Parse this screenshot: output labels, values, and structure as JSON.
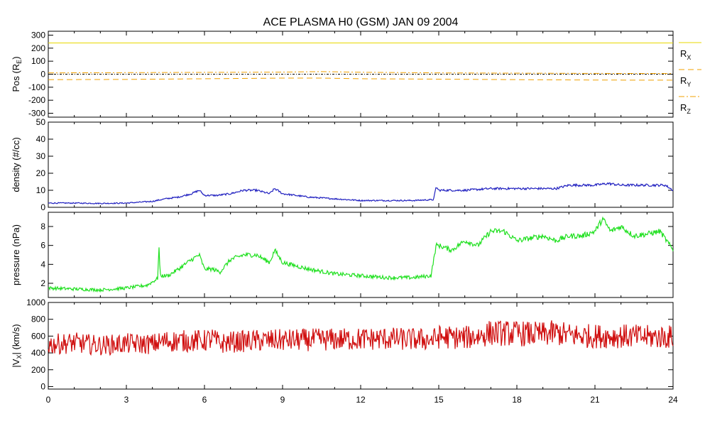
{
  "chart_data": {
    "type": "line",
    "title": "ACE PLASMA H0 (GSM)   JAN 09 2004",
    "x_ticks": [
      0,
      3,
      6,
      9,
      12,
      15,
      18,
      21,
      24
    ],
    "xlim": [
      0,
      24
    ],
    "colors": {
      "rx": "#e8d800",
      "ry": "#f0a000",
      "rz": "#f0a000",
      "density": "#2020c0",
      "pressure": "#20e020",
      "vx": "#d01010",
      "zero": "#000000"
    },
    "panels": [
      {
        "id": "pos",
        "ylabel_main": "Pos (R",
        "ylabel_sub": "E",
        "ylabel_end": ")",
        "ylim": [
          -330,
          330
        ],
        "y_ticks": [
          300,
          200,
          100,
          0,
          -100,
          -200,
          -300
        ],
        "legend": [
          {
            "main": "R",
            "sub": "X"
          },
          {
            "main": "R",
            "sub": "Y"
          },
          {
            "main": "R",
            "sub": "Z"
          }
        ],
        "series": [
          {
            "x": [
              0,
              24
            ],
            "values": [
              240,
              240
            ]
          },
          {
            "x": [
              0,
              3,
              6,
              9,
              10.5,
              12,
              15,
              18,
              21,
              24
            ],
            "values": [
              -42,
              -40,
              -35,
              -30,
              -30,
              -35,
              -38,
              -42,
              -45,
              -46
            ]
          },
          {
            "x": [
              0,
              3,
              6,
              9,
              10.5,
              12,
              15,
              18,
              21,
              24
            ],
            "values": [
              10,
              12,
              14,
              16,
              20,
              15,
              10,
              8,
              6,
              5
            ]
          }
        ]
      },
      {
        "id": "density",
        "ylabel_main": "density (#/cc)",
        "ylim": [
          0,
          50
        ],
        "y_ticks": [
          0,
          10,
          20,
          30,
          40,
          50
        ],
        "series": {
          "x": [
            0,
            1,
            2,
            3,
            3.5,
            4,
            4.5,
            5,
            5.5,
            5.8,
            6,
            6.5,
            7,
            7.5,
            8,
            8.5,
            8.7,
            9,
            9.5,
            10,
            11,
            12,
            13,
            14,
            14.8,
            14.9,
            15,
            15.5,
            16,
            17,
            18,
            19,
            19.5,
            20,
            21,
            21.5,
            22,
            23,
            23.7,
            24
          ],
          "values": [
            2.5,
            2.5,
            2.3,
            2.5,
            3,
            3.5,
            5,
            6,
            8,
            10,
            7,
            7,
            8,
            10,
            10,
            8,
            11,
            8,
            7,
            6,
            5,
            4,
            4,
            4,
            4.5,
            12,
            10,
            10,
            10,
            11,
            11,
            11,
            11,
            13,
            13,
            14,
            13,
            13,
            13,
            10
          ]
        }
      },
      {
        "id": "pressure",
        "ylabel_main": "pressure (nPa)",
        "ylim": [
          0.5,
          9.5
        ],
        "y_ticks": [
          2,
          4,
          6,
          8
        ],
        "series": {
          "x": [
            0,
            1,
            2,
            3,
            3.8,
            4.2,
            4.25,
            4.3,
            4.6,
            5,
            5.5,
            5.8,
            6,
            6.3,
            6.6,
            7,
            7.5,
            8,
            8.5,
            8.7,
            9,
            10,
            11,
            12,
            13,
            14,
            14.7,
            14.9,
            15,
            15.5,
            16,
            16.5,
            17,
            17.5,
            18,
            19,
            19.5,
            20,
            20.5,
            21,
            21.3,
            21.6,
            22,
            22.5,
            23,
            23.5,
            24
          ],
          "values": [
            1.5,
            1.4,
            1.3,
            1.5,
            1.8,
            2.5,
            6,
            2.8,
            2.8,
            3.5,
            4.5,
            5,
            3.5,
            3.5,
            3.2,
            4.5,
            5,
            5,
            4.2,
            5.5,
            4.2,
            3.5,
            3,
            2.8,
            2.6,
            2.6,
            2.8,
            6,
            6,
            5.5,
            6.5,
            6,
            7.5,
            7.5,
            6.5,
            7,
            6.5,
            7,
            7,
            7.5,
            8.8,
            7.5,
            8,
            7,
            7.2,
            7.5,
            5.5
          ]
        }
      },
      {
        "id": "vx",
        "ylabel_main": "|V",
        "ylabel_sub": "X",
        "ylabel_end": "| (km/s)",
        "ylim": [
          -30,
          1000
        ],
        "y_ticks": [
          0,
          200,
          400,
          600,
          800,
          1000
        ],
        "series": {
          "x": [
            0,
            0.5,
            1,
            2,
            3,
            4,
            4.5,
            5,
            6,
            6.3,
            6.6,
            7,
            8,
            9,
            10,
            11,
            12,
            13,
            14,
            14.8,
            15,
            16,
            16.5,
            17,
            18,
            19,
            19.5,
            20,
            21,
            22,
            23,
            24
          ],
          "values": [
            500,
            510,
            520,
            490,
            510,
            505,
            540,
            540,
            545,
            570,
            510,
            530,
            545,
            550,
            555,
            560,
            565,
            570,
            560,
            560,
            590,
            580,
            600,
            640,
            630,
            620,
            640,
            610,
            600,
            600,
            590,
            590
          ]
        }
      }
    ]
  }
}
